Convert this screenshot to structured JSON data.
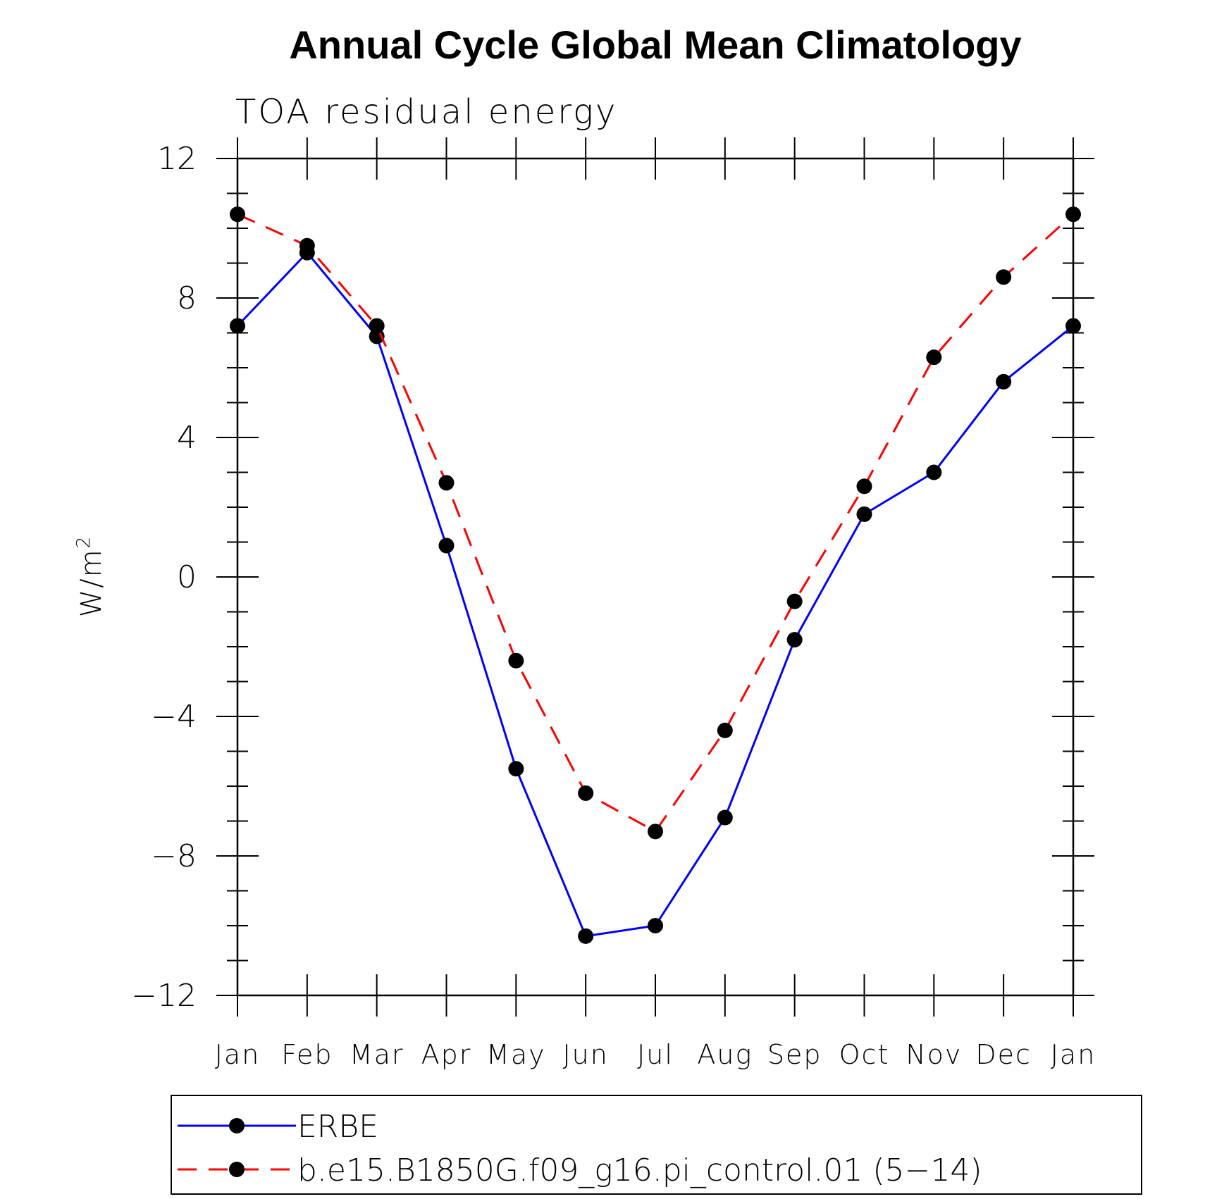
{
  "chart_data": {
    "type": "line",
    "title": "Annual Cycle Global Mean Climatology",
    "subtitle": "TOA residual energy",
    "xlabel": "",
    "ylabel": "W/m",
    "ylabel_superscript": "2",
    "ylim": [
      -12,
      12
    ],
    "yticks": [
      12,
      8,
      4,
      0,
      -4,
      -8,
      -12
    ],
    "ytick_labels": [
      "12",
      "8",
      "4",
      "0",
      "−4",
      "−8",
      "−12"
    ],
    "categories": [
      "Jan",
      "Feb",
      "Mar",
      "Apr",
      "May",
      "Jun",
      "Jul",
      "Aug",
      "Sep",
      "Oct",
      "Nov",
      "Dec",
      "Jan"
    ],
    "series": [
      {
        "name": "ERBE",
        "color": "#0000ff",
        "dash": "solid",
        "values": [
          7.2,
          9.3,
          6.9,
          0.9,
          -5.5,
          -10.3,
          -10.0,
          -6.9,
          -1.8,
          1.8,
          3.0,
          5.6,
          7.2
        ]
      },
      {
        "name": "b.e15.B1850G.f09_g16.pi_control.01 (5−14)",
        "color": "#ff0000",
        "dash": "dashed",
        "values": [
          10.4,
          9.5,
          7.2,
          2.7,
          -2.4,
          -6.2,
          -7.3,
          -4.4,
          -0.7,
          2.6,
          6.3,
          8.6,
          10.4
        ]
      }
    ],
    "legend_position": "bottom"
  }
}
